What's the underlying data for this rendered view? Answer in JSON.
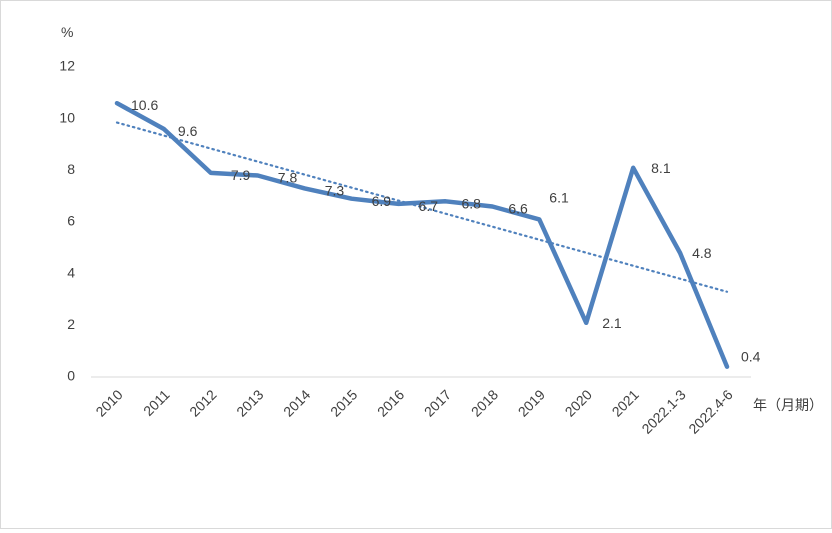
{
  "chart_data": {
    "type": "line",
    "title": "",
    "ylabel": "%",
    "xlabel": "年（月期）",
    "ylim": [
      0,
      12
    ],
    "yticks": [
      0,
      2,
      4,
      6,
      8,
      10,
      12
    ],
    "grid": false,
    "legend": "none",
    "categories": [
      "2010",
      "2011",
      "2012",
      "2013",
      "2014",
      "2015",
      "2016",
      "2017",
      "2018",
      "2019",
      "2020",
      "2021",
      "2022.1-3",
      "2022.4-6"
    ],
    "series": [
      {
        "values": [
          10.6,
          9.6,
          7.9,
          7.8,
          7.3,
          6.9,
          6.7,
          6.8,
          6.6,
          6.1,
          2.1,
          8.1,
          4.8,
          0.4
        ],
        "data_labels": [
          "10.6",
          "9.6",
          "7.9",
          "7.8",
          "7.3",
          "6.9",
          "6.7",
          "6.8",
          "6.6",
          "6.1",
          "2.1",
          "8.1",
          "4.8",
          "0.4"
        ],
        "color": "#4f81bd"
      }
    ],
    "trendline": {
      "type": "linear",
      "start_value": 9.85,
      "end_value": 3.3,
      "color": "#4f81bd",
      "style": "dotted"
    }
  }
}
